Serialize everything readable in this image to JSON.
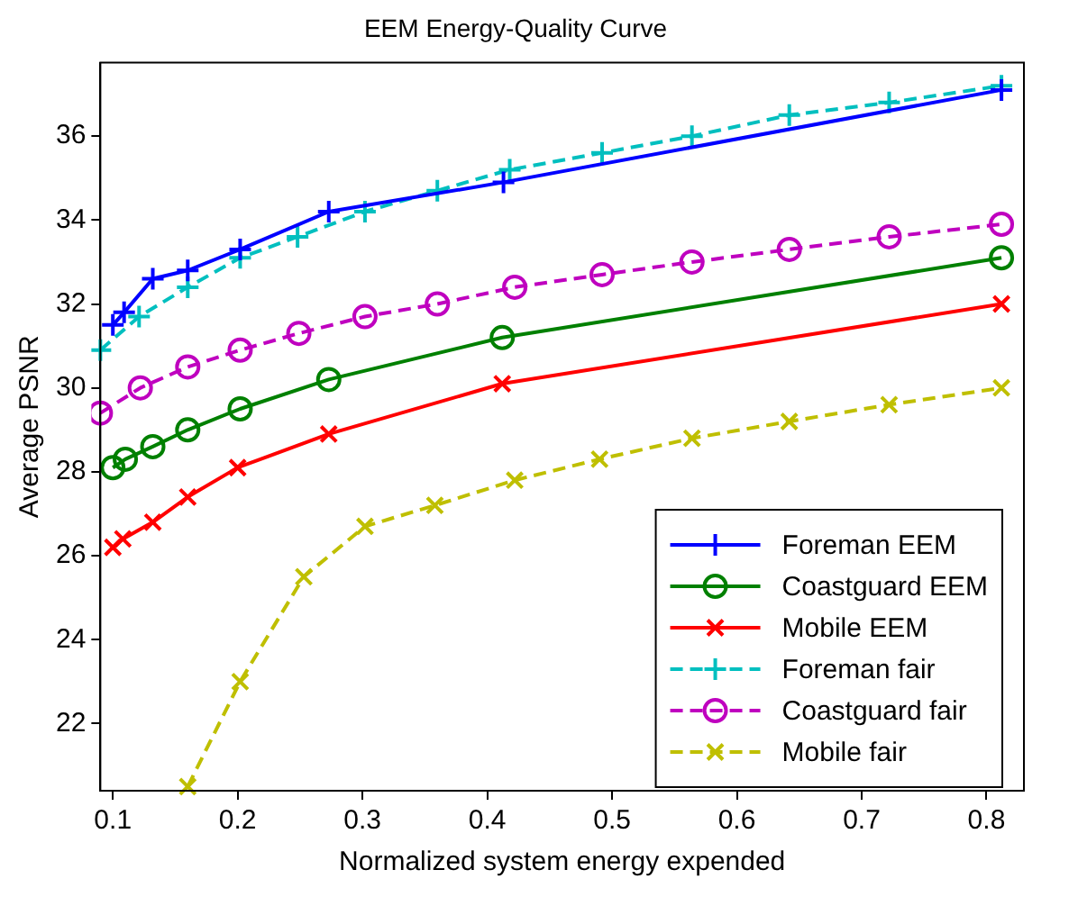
{
  "chart_data": {
    "type": "line",
    "title": "EEM Energy-Quality Curve",
    "xlabel": "Normalized system energy expended",
    "ylabel": "Average PSNR",
    "xlim": [
      0.09,
      0.83
    ],
    "ylim": [
      20.4,
      37.75
    ],
    "xticks": [
      0.1,
      0.2,
      0.3,
      0.4,
      0.5,
      0.6,
      0.7,
      0.8
    ],
    "yticks": [
      22,
      24,
      26,
      28,
      30,
      32,
      34,
      36
    ],
    "legend": "bottom right",
    "grid": false,
    "series": [
      {
        "name": "Foreman EEM",
        "color": "#0000ff",
        "marker": "plus",
        "line_style": "solid",
        "x": [
          0.1,
          0.109,
          0.132,
          0.16,
          0.202,
          0.273,
          0.413,
          0.812
        ],
        "values": [
          31.5,
          31.8,
          32.6,
          32.8,
          33.3,
          34.2,
          34.9,
          37.1
        ]
      },
      {
        "name": "Coastguard EEM",
        "color": "#008000",
        "marker": "circle",
        "line_style": "solid",
        "x": [
          0.1,
          0.11,
          0.132,
          0.16,
          0.202,
          0.273,
          0.412,
          0.812
        ],
        "values": [
          28.1,
          28.3,
          28.6,
          29.0,
          29.5,
          30.2,
          31.2,
          33.1
        ]
      },
      {
        "name": "Mobile EEM",
        "color": "#ff0000",
        "marker": "cross",
        "line_style": "solid",
        "x": [
          0.1,
          0.108,
          0.132,
          0.16,
          0.2,
          0.273,
          0.412,
          0.812
        ],
        "values": [
          26.2,
          26.4,
          26.8,
          27.4,
          28.1,
          28.9,
          30.1,
          32.0
        ]
      },
      {
        "name": "Foreman fair",
        "color": "#00bfbf",
        "marker": "plus",
        "line_style": "dashed",
        "x": [
          0.09,
          0.121,
          0.16,
          0.202,
          0.248,
          0.302,
          0.36,
          0.418,
          0.492,
          0.564,
          0.642,
          0.722,
          0.812
        ],
        "values": [
          30.9,
          31.7,
          32.4,
          33.1,
          33.6,
          34.2,
          34.7,
          35.2,
          35.6,
          36.0,
          36.5,
          36.8,
          37.2
        ]
      },
      {
        "name": "Coastguard fair",
        "color": "#bf00bf",
        "marker": "circle",
        "line_style": "dashed",
        "x": [
          0.09,
          0.122,
          0.16,
          0.202,
          0.249,
          0.302,
          0.36,
          0.422,
          0.492,
          0.564,
          0.642,
          0.722,
          0.812
        ],
        "values": [
          29.4,
          30.0,
          30.5,
          30.9,
          31.3,
          31.7,
          32.0,
          32.4,
          32.7,
          33.0,
          33.3,
          33.6,
          33.9
        ]
      },
      {
        "name": "Mobile fair",
        "color": "#bfbf00",
        "marker": "cross",
        "line_style": "dashed",
        "x": [
          0.16,
          0.202,
          0.253,
          0.302,
          0.358,
          0.422,
          0.49,
          0.564,
          0.642,
          0.722,
          0.812
        ],
        "values": [
          20.5,
          23.0,
          25.5,
          26.7,
          27.2,
          27.8,
          28.3,
          28.8,
          29.2,
          29.6,
          30.0
        ]
      }
    ]
  }
}
